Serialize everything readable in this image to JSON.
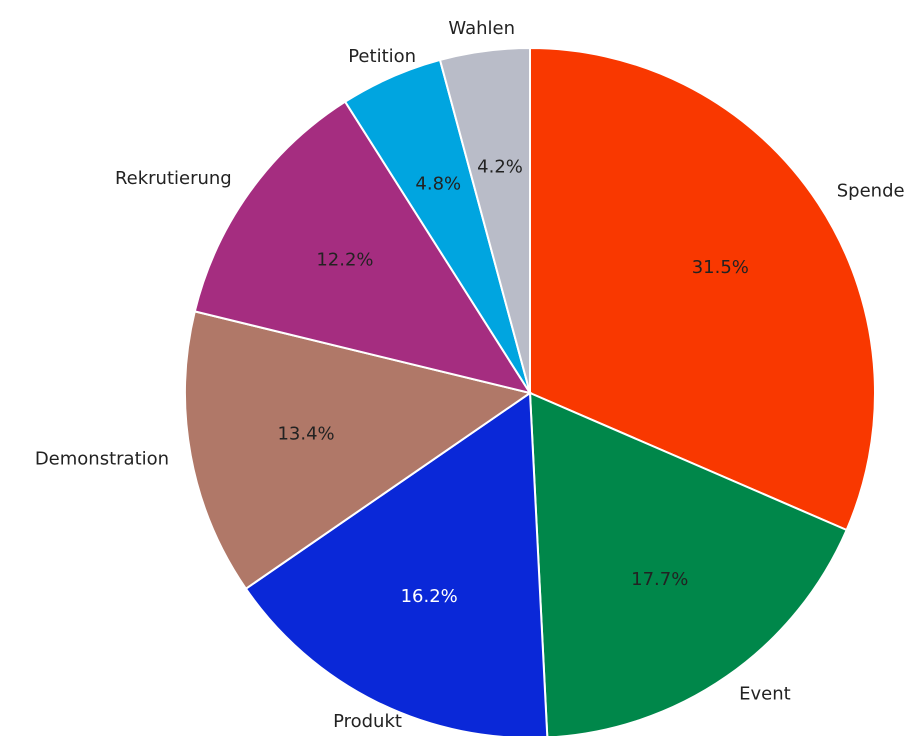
{
  "chart_data": {
    "type": "pie",
    "categories": [
      "Spende",
      "Event",
      "Produkt",
      "Demonstration",
      "Rekrutierung",
      "Petition",
      "Wahlen"
    ],
    "values": [
      31.5,
      17.7,
      16.2,
      13.4,
      12.2,
      4.8,
      4.2
    ],
    "value_labels": [
      "31.5%",
      "17.7%",
      "16.2%",
      "13.4%",
      "12.2%",
      "4.8%",
      "4.2%"
    ],
    "colors": [
      "#f93800",
      "#00874a",
      "#0a28d8",
      "#b07868",
      "#a52d80",
      "#00a5e0",
      "#b9bcc8"
    ]
  }
}
